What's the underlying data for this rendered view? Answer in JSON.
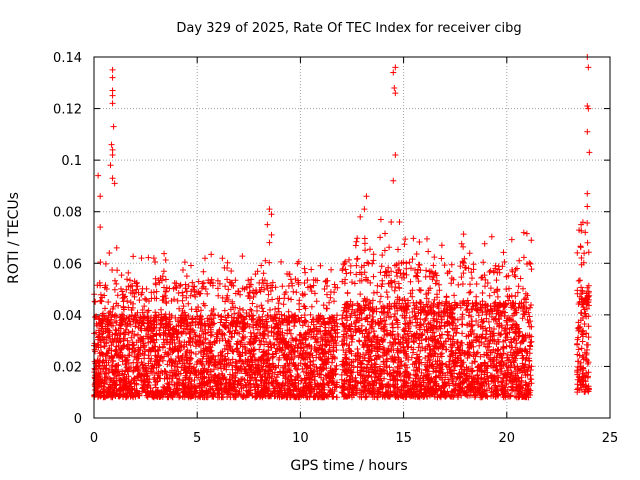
{
  "chart_data": {
    "type": "scatter",
    "title": "Day 329 of 2025, Rate Of TEC Index for receiver cibg",
    "xlabel": "GPS time / hours",
    "ylabel": "ROTI / TECUs",
    "xlim": [
      0,
      25
    ],
    "ylim": [
      0,
      0.14
    ],
    "xticks": [
      0,
      5,
      10,
      15,
      20,
      25
    ],
    "xtick_labels": [
      "0",
      "5",
      "10",
      "15",
      "20",
      "25"
    ],
    "yticks": [
      0,
      0.02,
      0.04,
      0.06,
      0.08,
      0.1,
      0.12,
      0.14
    ],
    "ytick_labels": [
      "0",
      "0.02",
      "0.04",
      "0.06",
      "0.08",
      "0.1",
      "0.12",
      "0.14"
    ],
    "grid": true,
    "marker": "plus",
    "series_color": "#ff0000",
    "data_segments": [
      {
        "x_range": [
          0.0,
          11.8
        ],
        "typical_min": 0.008,
        "typical_max": 0.04
      },
      {
        "x_range": [
          12.0,
          21.2
        ],
        "typical_min": 0.008,
        "typical_max": 0.045
      },
      {
        "x_range": [
          23.4,
          24.0
        ],
        "typical_min": 0.01,
        "typical_max": 0.05
      }
    ],
    "notable_points": [
      {
        "x": 0.2,
        "y": 0.094
      },
      {
        "x": 0.3,
        "y": 0.086
      },
      {
        "x": 0.3,
        "y": 0.074
      },
      {
        "x": 0.9,
        "y": 0.135
      },
      {
        "x": 0.9,
        "y": 0.132
      },
      {
        "x": 0.9,
        "y": 0.127
      },
      {
        "x": 0.9,
        "y": 0.125
      },
      {
        "x": 0.9,
        "y": 0.122
      },
      {
        "x": 0.95,
        "y": 0.113
      },
      {
        "x": 0.85,
        "y": 0.106
      },
      {
        "x": 0.9,
        "y": 0.104
      },
      {
        "x": 0.9,
        "y": 0.102
      },
      {
        "x": 0.8,
        "y": 0.098
      },
      {
        "x": 0.9,
        "y": 0.093
      },
      {
        "x": 1.0,
        "y": 0.091
      },
      {
        "x": 1.1,
        "y": 0.066
      },
      {
        "x": 2.3,
        "y": 0.062
      },
      {
        "x": 4.5,
        "y": 0.055
      },
      {
        "x": 6.1,
        "y": 0.052
      },
      {
        "x": 8.3,
        "y": 0.061
      },
      {
        "x": 8.5,
        "y": 0.081
      },
      {
        "x": 8.6,
        "y": 0.079
      },
      {
        "x": 8.4,
        "y": 0.075
      },
      {
        "x": 8.6,
        "y": 0.071
      },
      {
        "x": 8.5,
        "y": 0.068
      },
      {
        "x": 13.2,
        "y": 0.086
      },
      {
        "x": 13.1,
        "y": 0.081
      },
      {
        "x": 12.9,
        "y": 0.078
      },
      {
        "x": 13.9,
        "y": 0.077
      },
      {
        "x": 14.4,
        "y": 0.076
      },
      {
        "x": 14.5,
        "y": 0.134
      },
      {
        "x": 14.6,
        "y": 0.136
      },
      {
        "x": 14.55,
        "y": 0.128
      },
      {
        "x": 14.6,
        "y": 0.126
      },
      {
        "x": 14.6,
        "y": 0.102
      },
      {
        "x": 14.5,
        "y": 0.092
      },
      {
        "x": 14.8,
        "y": 0.076
      },
      {
        "x": 20.6,
        "y": 0.061
      },
      {
        "x": 23.9,
        "y": 0.14
      },
      {
        "x": 23.95,
        "y": 0.136
      },
      {
        "x": 23.9,
        "y": 0.121
      },
      {
        "x": 23.95,
        "y": 0.12
      },
      {
        "x": 23.9,
        "y": 0.111
      },
      {
        "x": 24.0,
        "y": 0.103
      },
      {
        "x": 23.9,
        "y": 0.087
      },
      {
        "x": 23.9,
        "y": 0.082
      },
      {
        "x": 23.6,
        "y": 0.075
      },
      {
        "x": 23.8,
        "y": 0.072
      }
    ]
  }
}
